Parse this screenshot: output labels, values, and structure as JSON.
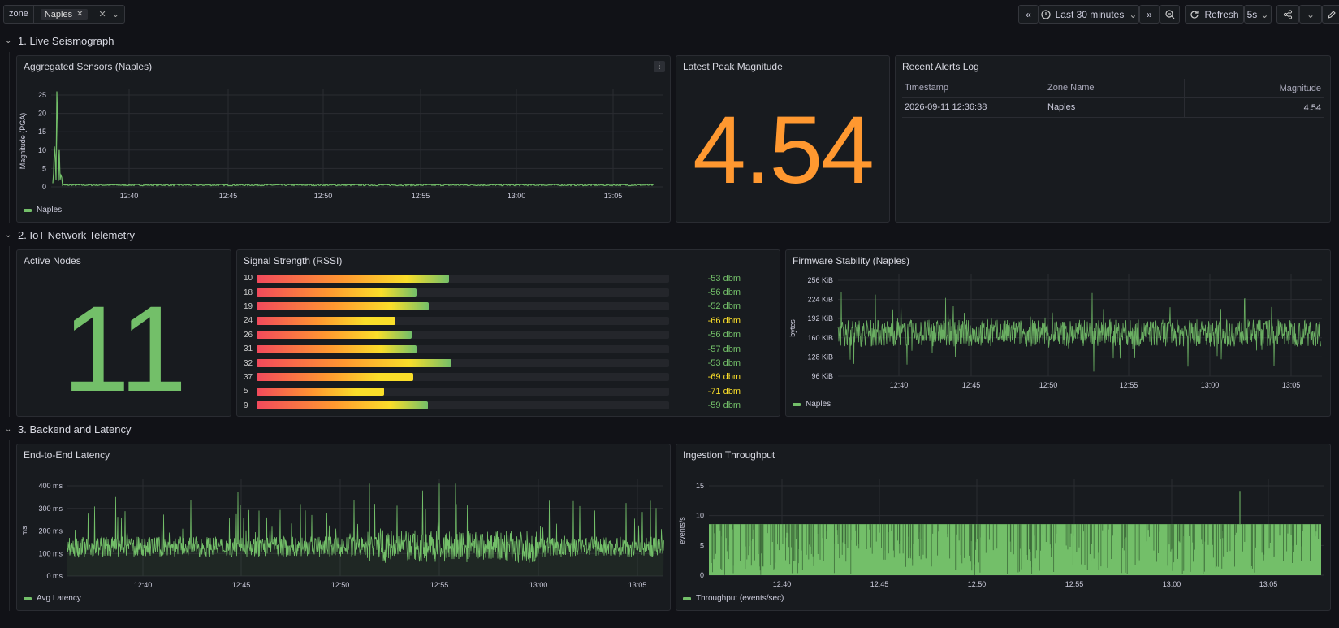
{
  "toolbar": {
    "variable_label": "zone",
    "variable_value": "Naples",
    "time_range": "Last 30 minutes",
    "refresh_label": "Refresh",
    "refresh_interval": "5s"
  },
  "rows": [
    {
      "title": "1. Live Seismograph"
    },
    {
      "title": "2. IoT Network Telemetry"
    },
    {
      "title": "3. Backend and Latency"
    }
  ],
  "panels": {
    "seismo": {
      "title": "Aggregated Sensors (Naples)",
      "legend": "Naples",
      "ylabel": "Magnitude (PGA)",
      "y_ticks": [
        "25",
        "20",
        "15",
        "10",
        "5",
        "0"
      ],
      "x_ticks": [
        "12:40",
        "12:45",
        "12:50",
        "12:55",
        "13:00",
        "13:05"
      ]
    },
    "peak": {
      "title": "Latest Peak Magnitude",
      "value": "4.54",
      "color": "#ff9830"
    },
    "alerts": {
      "title": "Recent Alerts Log",
      "columns": [
        "Timestamp",
        "Zone Name",
        "Magnitude"
      ],
      "rows": [
        [
          "2026-09-11 12:36:38",
          "Naples",
          "4.54"
        ]
      ]
    },
    "nodes": {
      "title": "Active Nodes",
      "value": "11",
      "color": "#73bf69"
    },
    "rssi": {
      "title": "Signal Strength (RSSI)",
      "items": [
        {
          "label": "10",
          "value": "-53 dbm",
          "fraction": 0.467,
          "color": "#73bf69"
        },
        {
          "label": "18",
          "value": "-56 dbm",
          "fraction": 0.388,
          "color": "#73bf69"
        },
        {
          "label": "19",
          "value": "-52 dbm",
          "fraction": 0.418,
          "color": "#73bf69"
        },
        {
          "label": "24",
          "value": "-66 dbm",
          "fraction": 0.337,
          "color": "#fade2a"
        },
        {
          "label": "26",
          "value": "-56 dbm",
          "fraction": 0.375,
          "color": "#73bf69"
        },
        {
          "label": "31",
          "value": "-57 dbm",
          "fraction": 0.388,
          "color": "#73bf69"
        },
        {
          "label": "32",
          "value": "-53 dbm",
          "fraction": 0.473,
          "color": "#73bf69"
        },
        {
          "label": "37",
          "value": "-69 dbm",
          "fraction": 0.379,
          "color": "#fade2a"
        },
        {
          "label": "5",
          "value": "-71 dbm",
          "fraction": 0.31,
          "color": "#fade2a"
        },
        {
          "label": "9",
          "value": "-59 dbm",
          "fraction": 0.416,
          "color": "#73bf69"
        }
      ]
    },
    "firmware": {
      "title": "Firmware Stability (Naples)",
      "legend": "Naples",
      "ylabel": "bytes",
      "y_ticks": [
        "256 KiB",
        "224 KiB",
        "192 KiB",
        "160 KiB",
        "128 KiB",
        "96 KiB"
      ],
      "x_ticks": [
        "12:40",
        "12:45",
        "12:50",
        "12:55",
        "13:00",
        "13:05"
      ]
    },
    "latency": {
      "title": "End-to-End Latency",
      "legend": "Avg Latency",
      "ylabel": "ms",
      "y_ticks": [
        "400 ms",
        "300 ms",
        "200 ms",
        "100 ms",
        "0 ms"
      ],
      "x_ticks": [
        "12:40",
        "12:45",
        "12:50",
        "12:55",
        "13:00",
        "13:05"
      ]
    },
    "throughput": {
      "title": "Ingestion Throughput",
      "legend": "Throughput (events/sec)",
      "ylabel": "events/s",
      "y_ticks": [
        "15",
        "10",
        "5",
        "0"
      ],
      "x_ticks": [
        "12:40",
        "12:45",
        "12:50",
        "12:55",
        "13:00",
        "13:05"
      ]
    }
  },
  "colors": {
    "series": "#73bf69",
    "background": "#111217",
    "panel": "#181b1f"
  }
}
